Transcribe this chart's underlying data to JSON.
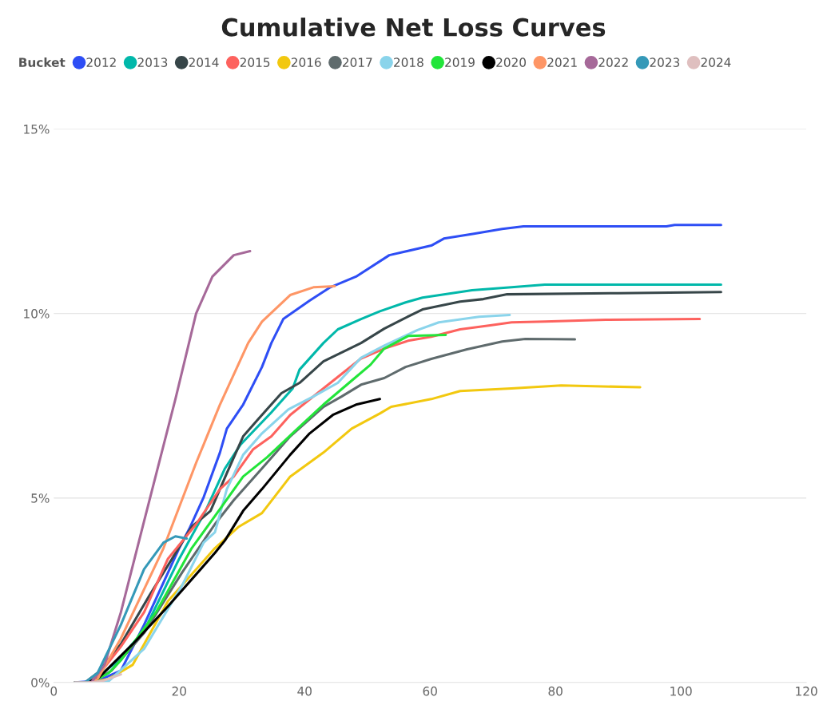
{
  "chart_data": {
    "type": "line",
    "title": "Cumulative Net Loss Curves",
    "legend_title": "Bucket",
    "legend": "top left",
    "grid": "y",
    "marker": "none",
    "line_style": "solid",
    "xlim": [
      0,
      120
    ],
    "xticks": [
      0,
      20,
      40,
      60,
      80,
      100,
      120
    ],
    "ylim": [
      0,
      15
    ],
    "yticks": [
      {
        "value": 0,
        "label": "0%"
      },
      {
        "value": 5,
        "label": "5%"
      },
      {
        "value": 10,
        "label": "10%"
      },
      {
        "value": 15,
        "label": "15%"
      }
    ],
    "series": [
      {
        "name": "2012",
        "color": "#2e4ef5",
        "x": [
          3.4,
          7,
          10.7,
          14.4,
          20,
          21.6,
          23.9,
          26.5,
          27.6,
          30.2,
          33.2,
          34.7,
          36.6,
          40.8,
          44.1,
          48.2,
          53.5,
          60.2,
          62.2,
          67,
          71.5,
          74.9,
          97.7,
          99,
          106.4
        ],
        "values": [
          0,
          0.04,
          0.32,
          1.56,
          3.64,
          4.16,
          5.02,
          6.23,
          6.88,
          7.53,
          8.55,
          9.2,
          9.85,
          10.35,
          10.71,
          11.0,
          11.58,
          11.84,
          12.03,
          12.16,
          12.29,
          12.36,
          12.36,
          12.4,
          12.4
        ]
      },
      {
        "name": "2013",
        "color": "#01b8aa",
        "x": [
          3.4,
          6,
          9.9,
          14.4,
          20,
          24.2,
          27.3,
          29.8,
          34.7,
          38.1,
          39.2,
          43,
          45.3,
          49,
          52,
          56.1,
          58.8,
          66.7,
          73,
          78.3,
          106.4
        ],
        "values": [
          0,
          0,
          0.54,
          1.4,
          3.35,
          4.65,
          5.8,
          6.45,
          7.32,
          7.97,
          8.48,
          9.2,
          9.57,
          9.85,
          10.06,
          10.3,
          10.43,
          10.63,
          10.71,
          10.78,
          10.78
        ]
      },
      {
        "name": "2014",
        "color": "#374649",
        "x": [
          3.4,
          5,
          7,
          10.7,
          15.2,
          22,
          25,
          27.6,
          30.2,
          32.4,
          36.3,
          39.2,
          43,
          49,
          52.7,
          55.7,
          58.8,
          64.8,
          68.5,
          72.3,
          90,
          106.4
        ],
        "values": [
          0,
          0,
          0.26,
          1.04,
          2.34,
          4.22,
          4.65,
          5.67,
          6.67,
          7.1,
          7.84,
          8.12,
          8.7,
          9.2,
          9.59,
          9.85,
          10.11,
          10.32,
          10.39,
          10.52,
          10.55,
          10.58
        ]
      },
      {
        "name": "2015",
        "color": "#fd625e",
        "x": [
          3.4,
          5,
          7,
          10.7,
          14.4,
          18.2,
          22.7,
          26.5,
          28.7,
          31.8,
          34.7,
          37.7,
          43,
          49,
          52.7,
          56.5,
          60.2,
          64.8,
          69.6,
          73,
          78.3,
          88,
          103
        ],
        "values": [
          0,
          0,
          0.17,
          0.97,
          1.9,
          3.35,
          4.29,
          5.24,
          5.58,
          6.32,
          6.67,
          7.25,
          7.97,
          8.78,
          9.05,
          9.26,
          9.37,
          9.57,
          9.68,
          9.76,
          9.78,
          9.83,
          9.85
        ]
      },
      {
        "name": "2016",
        "color": "#f2c80f",
        "x": [
          3.4,
          6,
          8.8,
          12.6,
          18.2,
          25.7,
          29.5,
          33.2,
          37.7,
          43,
          47.5,
          52,
          53.8,
          60.2,
          64.8,
          73,
          80.9,
          93.5
        ],
        "values": [
          0,
          0,
          0.1,
          0.48,
          2.2,
          3.64,
          4.22,
          4.59,
          5.58,
          6.23,
          6.88,
          7.29,
          7.47,
          7.68,
          7.9,
          7.97,
          8.05,
          8.0
        ]
      },
      {
        "name": "2017",
        "color": "#5f6b6d",
        "x": [
          3.4,
          6,
          9.2,
          14.4,
          20.5,
          25.7,
          28.7,
          33.2,
          37.7,
          43,
          45.9,
          49,
          52.7,
          56.1,
          60.2,
          65.9,
          71.5,
          75.2,
          83.1
        ],
        "values": [
          0,
          0,
          0.32,
          1.34,
          2.99,
          4.29,
          4.94,
          5.8,
          6.67,
          7.47,
          7.75,
          8.07,
          8.25,
          8.55,
          8.77,
          9.03,
          9.24,
          9.31,
          9.3
        ]
      },
      {
        "name": "2018",
        "color": "#8ad4eb",
        "x": [
          3.4,
          6,
          8.8,
          14.4,
          20.5,
          23.9,
          25.7,
          27.6,
          30.2,
          33.2,
          37.4,
          41.4,
          45.3,
          49,
          52.7,
          58,
          61.4,
          67.8,
          72.7
        ],
        "values": [
          0,
          0,
          0.04,
          0.91,
          2.64,
          3.79,
          4.07,
          5.24,
          6.17,
          6.75,
          7.4,
          7.75,
          8.12,
          8.8,
          9.13,
          9.55,
          9.76,
          9.91,
          9.96
        ]
      },
      {
        "name": "2019",
        "color": "#22e53a",
        "x": [
          3.4,
          6,
          8.8,
          10.7,
          16.3,
          22,
          26.5,
          30.2,
          34,
          38.5,
          43,
          47.5,
          50.5,
          52.7,
          56.5,
          62.5
        ],
        "values": [
          0,
          0,
          0.26,
          0.6,
          1.9,
          3.64,
          4.7,
          5.58,
          6.1,
          6.82,
          7.53,
          8.18,
          8.61,
          9.05,
          9.39,
          9.42
        ]
      },
      {
        "name": "2020",
        "color": "#000000",
        "x": [
          3.4,
          5,
          7,
          12.6,
          18.2,
          25.7,
          27.3,
          30.2,
          33.2,
          37.7,
          40.8,
          44.5,
          48.2,
          52
        ],
        "values": [
          0,
          0,
          0.1,
          1.04,
          2.06,
          3.51,
          3.85,
          4.65,
          5.24,
          6.17,
          6.75,
          7.25,
          7.53,
          7.68
        ]
      },
      {
        "name": "2021",
        "color": "#fe9666",
        "x": [
          3.4,
          6,
          7,
          10.7,
          17.5,
          22.7,
          26.5,
          31,
          33.2,
          37.7,
          41.4,
          44.8
        ],
        "values": [
          0,
          0,
          0.1,
          1.19,
          3.64,
          5.95,
          7.53,
          9.2,
          9.78,
          10.5,
          10.71,
          10.74
        ]
      },
      {
        "name": "2022",
        "color": "#a66999",
        "x": [
          3.4,
          6,
          8.1,
          10.7,
          14.4,
          19.4,
          22.7,
          25.3,
          28.7,
          31.3
        ],
        "values": [
          0,
          0,
          0.48,
          1.9,
          4.37,
          7.68,
          10.0,
          11.0,
          11.58,
          11.69
        ]
      },
      {
        "name": "2023",
        "color": "#3599b8",
        "x": [
          3.4,
          5,
          7,
          10.7,
          14.4,
          17.5,
          19.4,
          21.2
        ],
        "values": [
          0,
          0,
          0.26,
          1.56,
          3.07,
          3.79,
          3.96,
          3.9
        ]
      },
      {
        "name": "2024",
        "color": "#dfbfbf",
        "x": [
          3.4,
          6,
          8,
          10.7
        ],
        "values": [
          0,
          0,
          0.05,
          0.22
        ]
      }
    ]
  }
}
